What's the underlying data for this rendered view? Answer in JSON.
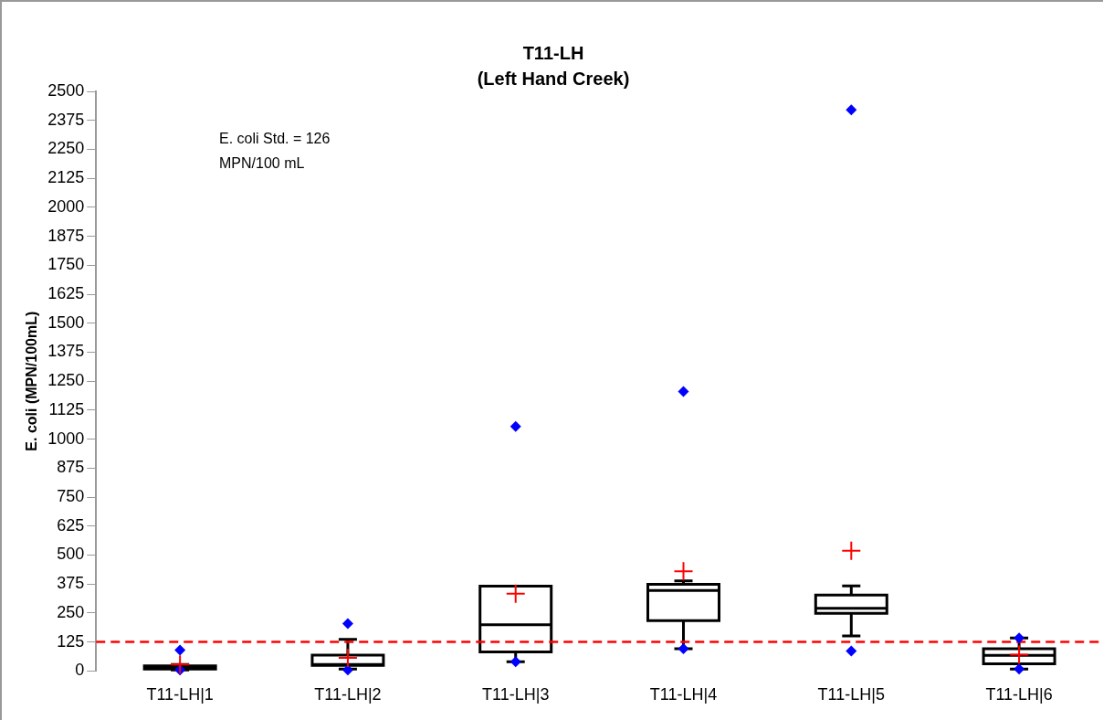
{
  "chart_data": {
    "type": "box",
    "title": "T11-LH",
    "subtitle": "(Left Hand Creek)",
    "ylabel": "E. coli (MPN/100mL)",
    "categories": [
      "T11-LH|1",
      "T11-LH|2",
      "T11-LH|3",
      "T11-LH|4",
      "T11-LH|5",
      "T11-LH|6"
    ],
    "boxes": [
      {
        "low": 5,
        "q1": 8,
        "median": 15,
        "q3": 22,
        "high": 28,
        "mean": 28,
        "outliers": [
          90,
          5
        ]
      },
      {
        "low": 8,
        "q1": 24,
        "median": 28,
        "q3": 69,
        "high": 137,
        "mean": 57,
        "outliers": [
          205,
          5
        ]
      },
      {
        "low": 40,
        "q1": 82,
        "median": 200,
        "q3": 366,
        "high": 366,
        "mean": 334,
        "outliers": [
          1055,
          40
        ]
      },
      {
        "low": 96,
        "q1": 217,
        "median": 347,
        "q3": 374,
        "high": 389,
        "mean": 430,
        "outliers": [
          1205,
          96
        ]
      },
      {
        "low": 151,
        "q1": 249,
        "median": 271,
        "q3": 328,
        "high": 367,
        "mean": 519,
        "outliers": [
          2420,
          86
        ]
      },
      {
        "low": 8,
        "q1": 31,
        "median": 68,
        "q3": 96,
        "high": 142,
        "mean": 71,
        "outliers": [
          142,
          8
        ]
      }
    ],
    "ylim": [
      0,
      2500
    ],
    "yticks": [
      0,
      125,
      250,
      375,
      500,
      625,
      750,
      875,
      1000,
      1125,
      1250,
      1375,
      1500,
      1625,
      1750,
      1875,
      2000,
      2125,
      2250,
      2375,
      2500
    ],
    "ref_lines": [
      {
        "axis": "y",
        "value": 126,
        "color": "#ff0000",
        "line_style": "dashed"
      }
    ],
    "annotations": [
      "E. coli Std. = 126 MPN/100 mL"
    ],
    "grid": false,
    "legend": false
  }
}
